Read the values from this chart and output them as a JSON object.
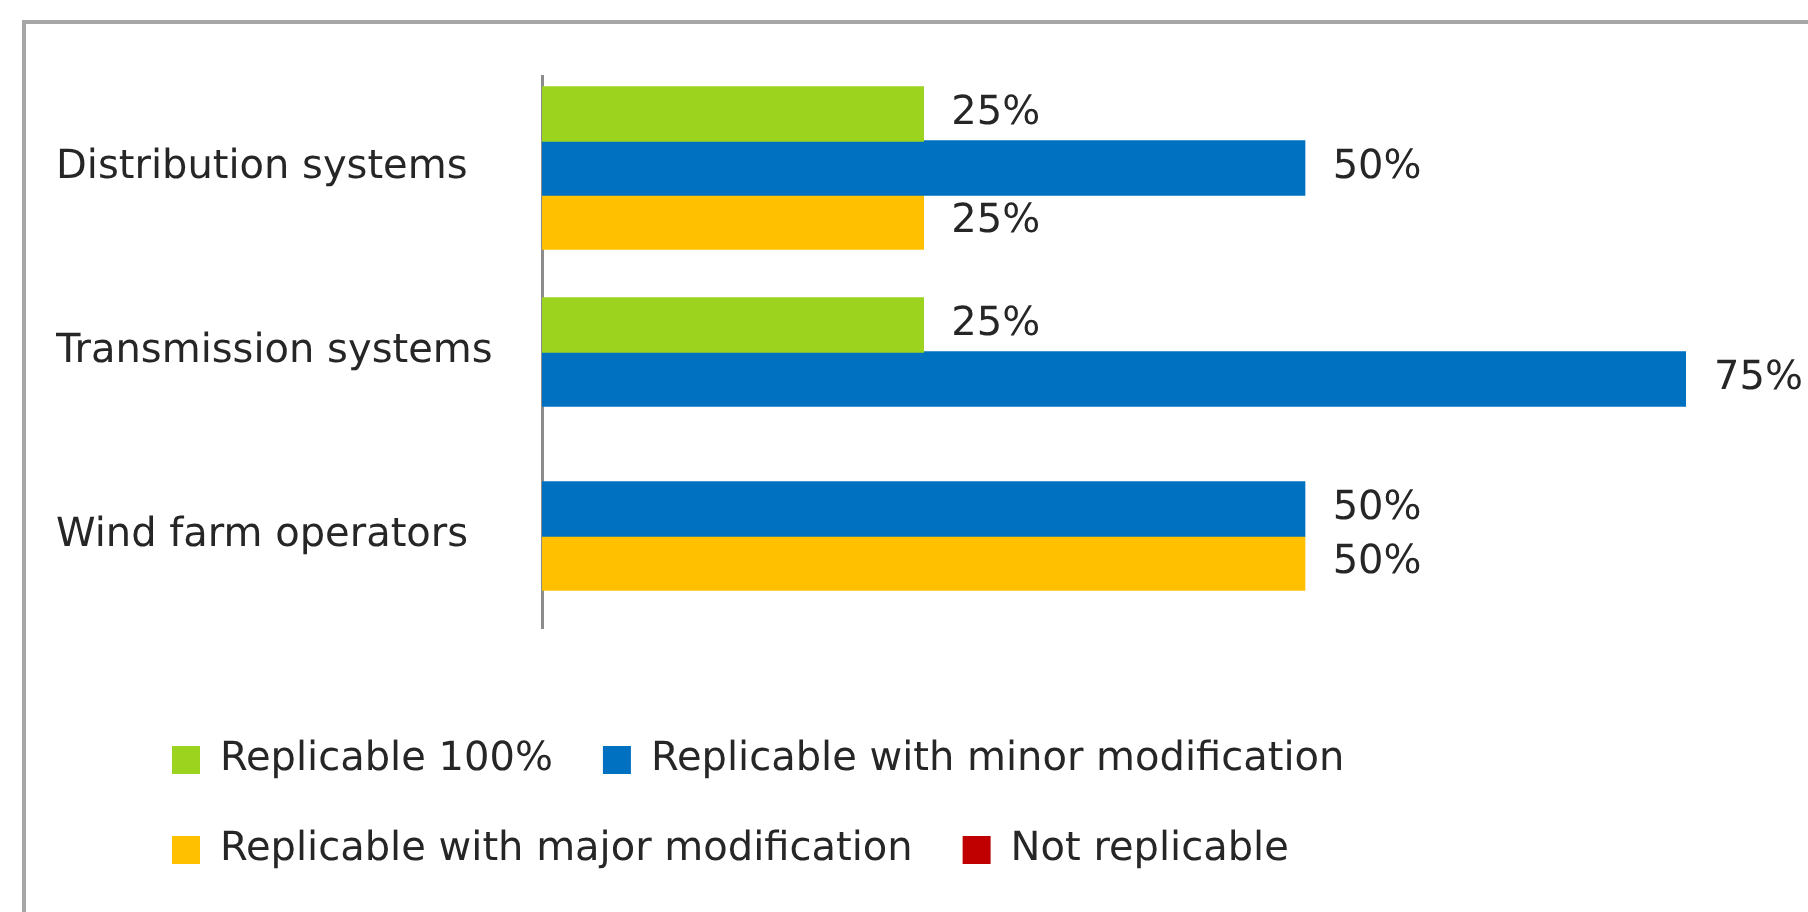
{
  "chart_data": {
    "type": "bar",
    "orientation": "horizontal",
    "categories": [
      "Distribution systems",
      "Transmission systems",
      "Wind farm operators"
    ],
    "series": [
      {
        "name": "Replicable 100%",
        "color": "#9bd31f",
        "values": [
          25,
          25,
          null
        ],
        "value_labels": [
          "25%",
          "25%",
          null
        ]
      },
      {
        "name": "Replicable with minor modification",
        "color": "#0070c0",
        "values": [
          50,
          75,
          50
        ],
        "value_labels": [
          "50%",
          "75%",
          "50%"
        ]
      },
      {
        "name": "Replicable with major modification",
        "color": "#ffc000",
        "values": [
          25,
          null,
          50
        ],
        "value_labels": [
          "25%",
          null,
          "50%"
        ]
      },
      {
        "name": "Not replicable",
        "color": "#c00000",
        "values": [
          null,
          null,
          null
        ]
      }
    ],
    "legend": "bottom",
    "tick_labels": "y"
  }
}
